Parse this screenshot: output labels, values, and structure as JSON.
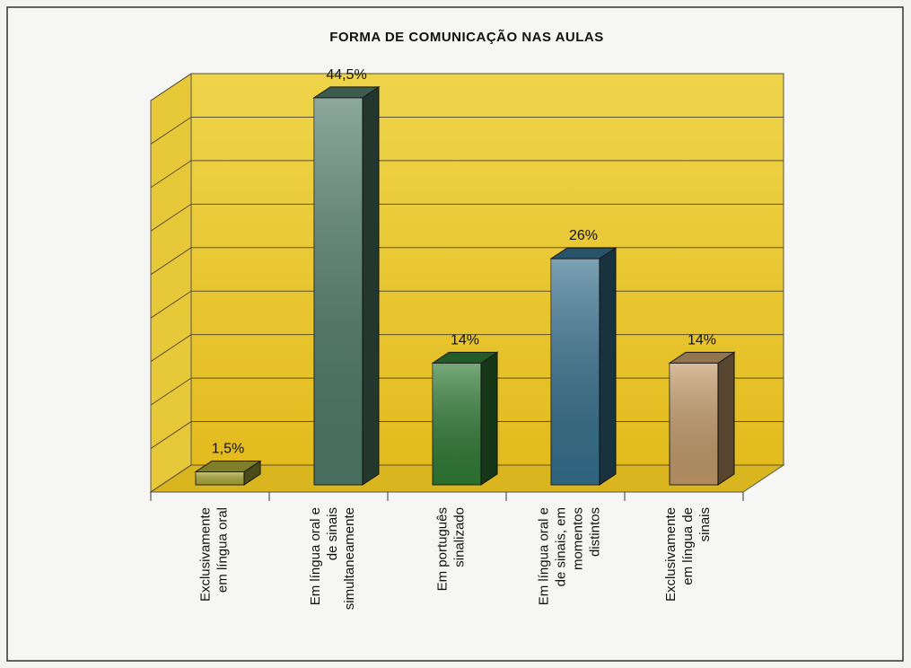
{
  "chart_data": {
    "type": "bar3d",
    "title": "FORMA DE COMUNICAÇÃO NAS AULAS",
    "categories": [
      [
        "Exclusivamente",
        "em língua oral"
      ],
      [
        "Em língua oral e",
        "de sinais",
        "simultaneamente"
      ],
      [
        "Em português",
        "sinalizado"
      ],
      [
        "Em língua oral e",
        "de sinais, em",
        "momentos",
        "distintos"
      ],
      [
        "Exclusivamente",
        "em língua de",
        "sinais"
      ]
    ],
    "values": [
      1.5,
      44.5,
      14,
      26,
      14
    ],
    "value_labels": [
      "1,5%",
      "44,5%",
      "14%",
      "26%",
      "14%"
    ],
    "colors": [
      "#a9a838",
      "#4f7a68",
      "#2f7a34",
      "#356f8c",
      "#c29a68"
    ],
    "ylim": [
      0,
      45
    ],
    "yticks": [
      0,
      5,
      10,
      15,
      20,
      25,
      30,
      35,
      40,
      45
    ],
    "grid": true
  }
}
